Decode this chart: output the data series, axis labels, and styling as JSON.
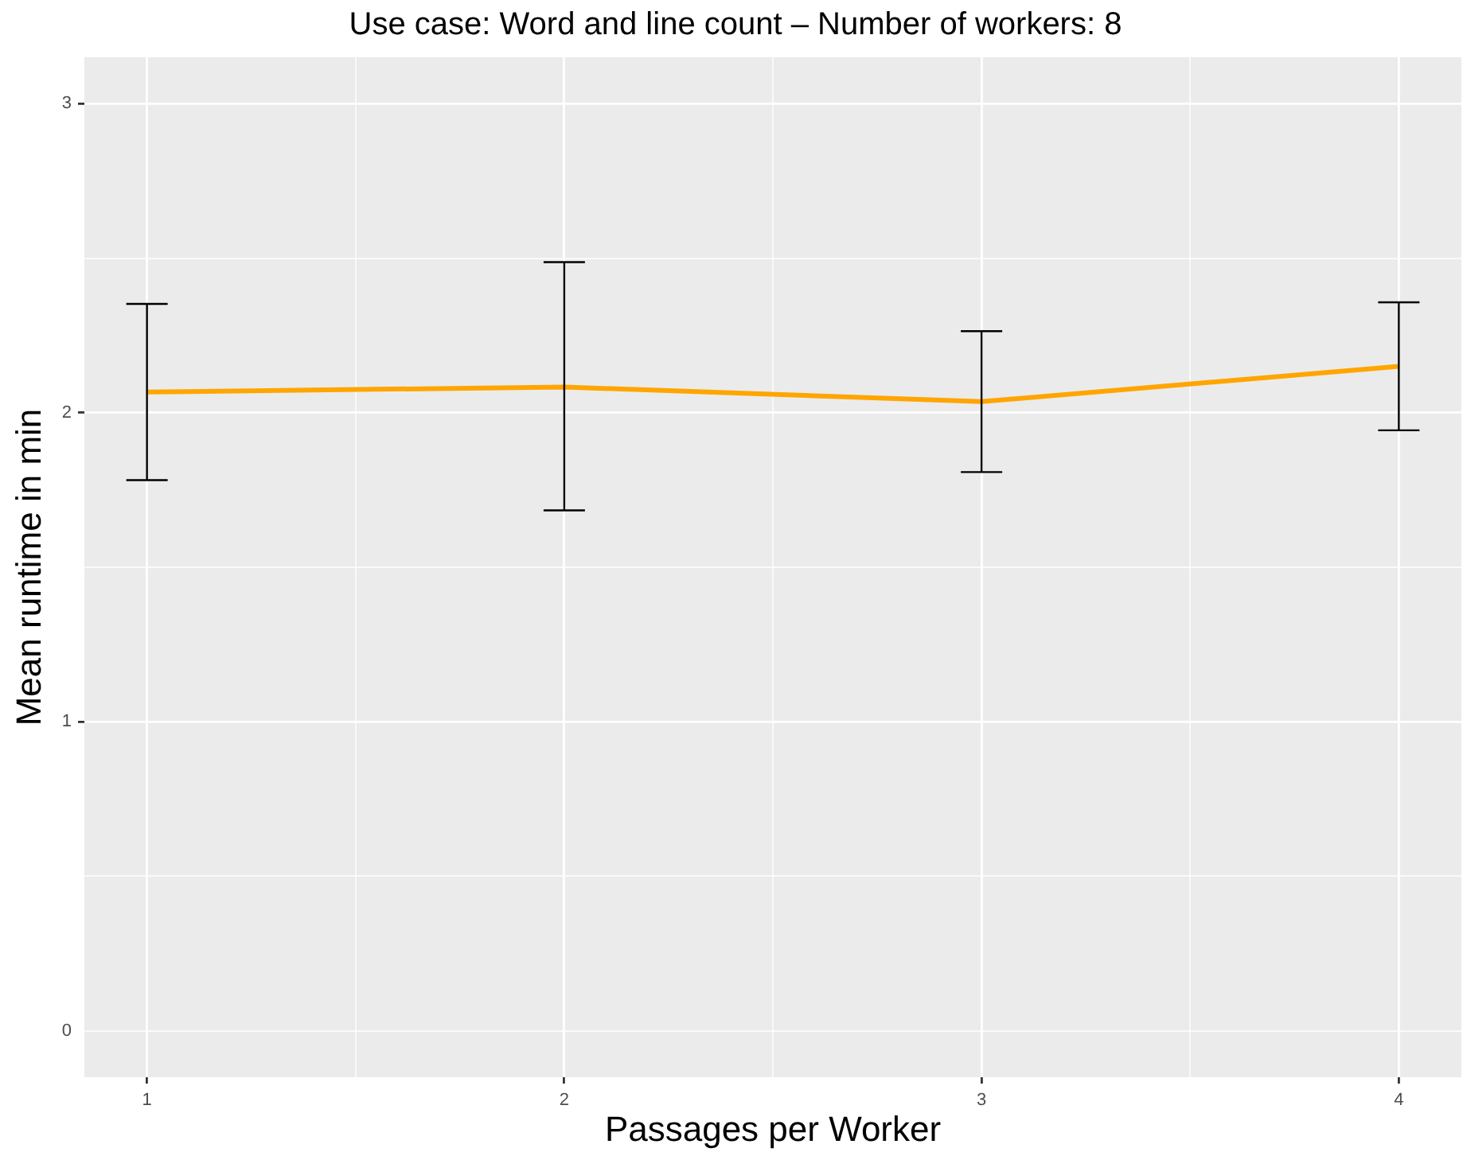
{
  "chart_data": {
    "type": "line",
    "title": "Use case: Word and line count – Number of workers: 8",
    "xlabel": "Passages per Worker",
    "ylabel": "Mean runtime in min",
    "x": [
      1,
      2,
      3,
      4
    ],
    "series": [
      {
        "color": "#ffa500",
        "values": [
          2.067,
          2.083,
          2.036,
          2.15
        ],
        "errors": [
          [
            1.782,
            2.352
          ],
          [
            1.684,
            2.487
          ],
          [
            1.808,
            2.264
          ],
          [
            1.943,
            2.357
          ]
        ]
      }
    ],
    "xlim": [
      0.85,
      4.15
    ],
    "xticks": [
      1,
      {
        "value": 1.5,
        "label": null
      },
      2,
      {
        "value": 2.5,
        "label": null
      },
      3,
      {
        "value": 3.5,
        "label": null
      },
      4
    ],
    "ylim": [
      -0.15,
      3.15
    ],
    "yticks": [
      0,
      {
        "value": 0.5,
        "label": null
      },
      1,
      {
        "value": 1.5,
        "label": null
      },
      2,
      {
        "value": 2.5,
        "label": null
      },
      3
    ],
    "grid": true,
    "legend": false,
    "marker": "none",
    "line_style": "solid"
  }
}
